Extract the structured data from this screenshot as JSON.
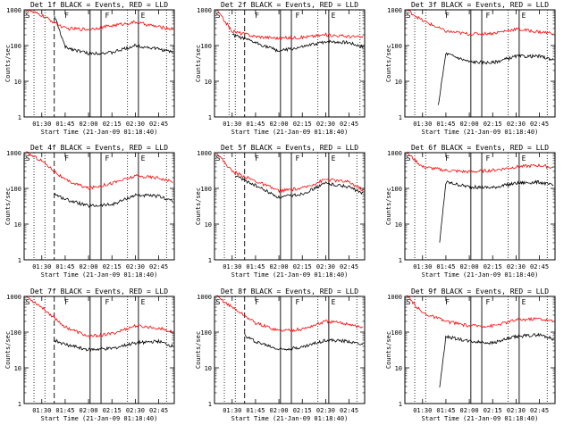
{
  "figure": {
    "time_range": [
      "01:18:40",
      "02:55:00"
    ],
    "colors": {
      "events": "#000000",
      "lld": "#ff0000",
      "axes": "#000000",
      "background": "#ffffff"
    }
  },
  "chart_data": [
    {
      "type": "line",
      "title": "Det 1f BLACK = Events, RED = LLD",
      "xlabel": "Start Time (21-Jan-09 01:18:40)",
      "ylabel": "Counts/sec",
      "x_ticks": [
        "01:30",
        "01:45",
        "02:00",
        "02:15",
        "02:30",
        "02:45"
      ],
      "y_ticks": [
        "1",
        "10",
        "100",
        "1000"
      ],
      "y_scale": "log",
      "ylim": [
        1,
        1000
      ],
      "xlim": [
        "01:18:40",
        "02:55:00"
      ],
      "markers": [
        {
          "label": "S",
          "time": "01:19"
        },
        {
          "label": "F",
          "time": "01:44"
        },
        {
          "label": "F",
          "time": "02:10"
        },
        {
          "label": "E",
          "time": "02:33"
        }
      ],
      "vertical_lines": {
        "dotted": [
          "01:25",
          "01:32",
          "02:25",
          "02:50"
        ],
        "dashed": [
          "01:38"
        ],
        "solid": [
          "02:01",
          "02:08",
          "02:32"
        ]
      },
      "series": [
        {
          "name": "Events",
          "color": "#000000",
          "x": [
            "01:38",
            "01:45",
            "02:00",
            "02:15",
            "02:30",
            "02:45",
            "02:54"
          ],
          "values": [
            700,
            90,
            60,
            63,
            100,
            80,
            65
          ]
        },
        {
          "name": "LLD",
          "color": "#ff0000",
          "x": [
            "01:20",
            "01:30",
            "01:45",
            "02:00",
            "02:15",
            "02:30",
            "02:45",
            "02:54"
          ],
          "values": [
            1000,
            700,
            300,
            285,
            360,
            450,
            330,
            290
          ]
        }
      ]
    },
    {
      "type": "line",
      "title": "Det 2f BLACK = Events, RED = LLD",
      "xlabel": "Start Time (21-Jan-09 01:18:40)",
      "ylabel": "Counts/sec",
      "x_ticks": [
        "01:30",
        "01:45",
        "02:00",
        "02:15",
        "02:30",
        "02:45"
      ],
      "y_ticks": [
        "1",
        "10",
        "100",
        "1000"
      ],
      "y_scale": "log",
      "ylim": [
        1,
        1000
      ],
      "xlim": [
        "01:18:40",
        "02:55:00"
      ],
      "markers": [
        {
          "label": "S",
          "time": "01:19"
        },
        {
          "label": "F",
          "time": "01:44"
        },
        {
          "label": "F",
          "time": "02:10"
        },
        {
          "label": "E",
          "time": "02:33"
        }
      ],
      "vertical_lines": {
        "dotted": [
          "01:28",
          "01:32",
          "02:25",
          "02:52"
        ],
        "dashed": [
          "01:38"
        ],
        "solid": [
          "02:01",
          "02:08",
          "02:32"
        ]
      },
      "series": [
        {
          "name": "Events",
          "color": "#000000",
          "x": [
            "01:30",
            "01:45",
            "02:00",
            "02:15",
            "02:30",
            "02:45",
            "02:54"
          ],
          "values": [
            200,
            120,
            70,
            90,
            130,
            120,
            90
          ]
        },
        {
          "name": "LLD",
          "color": "#ff0000",
          "x": [
            "01:20",
            "01:30",
            "01:45",
            "02:00",
            "02:15",
            "02:30",
            "02:45",
            "02:54"
          ],
          "values": [
            1000,
            250,
            180,
            160,
            170,
            200,
            180,
            170
          ]
        }
      ]
    },
    {
      "type": "line",
      "title": "Det 3f BLACK = Events, RED = LLD",
      "xlabel": "Start Time (21-Jan-09 01:18:40)",
      "ylabel": "Counts/sec",
      "x_ticks": [
        "01:30",
        "01:45",
        "02:00",
        "02:15",
        "02:30",
        "02:45"
      ],
      "y_ticks": [
        "1",
        "10",
        "100",
        "1000"
      ],
      "y_scale": "log",
      "ylim": [
        1,
        1000
      ],
      "xlim": [
        "01:18:40",
        "02:55:00"
      ],
      "markers": [
        {
          "label": "S",
          "time": "01:19"
        },
        {
          "label": "F",
          "time": "01:44"
        },
        {
          "label": "F",
          "time": "02:10"
        },
        {
          "label": "E",
          "time": "02:33"
        }
      ],
      "vertical_lines": {
        "dotted": [
          "01:25",
          "01:32",
          "02:25",
          "02:50"
        ],
        "dashed": [],
        "solid": [
          "02:01",
          "02:08",
          "02:32"
        ]
      },
      "series": [
        {
          "name": "Events",
          "color": "#000000",
          "x": [
            "01:40",
            "01:45",
            "02:00",
            "02:15",
            "02:30",
            "02:45",
            "02:54"
          ],
          "values": [
            2,
            60,
            35,
            33,
            50,
            50,
            40
          ]
        },
        {
          "name": "LLD",
          "color": "#ff0000",
          "x": [
            "01:20",
            "01:30",
            "01:45",
            "02:00",
            "02:15",
            "02:30",
            "02:45",
            "02:54"
          ],
          "values": [
            1000,
            500,
            250,
            210,
            220,
            290,
            240,
            220
          ]
        }
      ]
    },
    {
      "type": "line",
      "title": "Det 4f BLACK = Events, RED = LLD",
      "xlabel": "Start Time (21-Jan-09 01:18:40)",
      "ylabel": "Counts/sec",
      "x_ticks": [
        "01:30",
        "01:45",
        "02:00",
        "02:15",
        "02:30",
        "02:45"
      ],
      "y_ticks": [
        "1",
        "10",
        "100",
        "1000"
      ],
      "y_scale": "log",
      "ylim": [
        1,
        1000
      ],
      "xlim": [
        "01:18:40",
        "02:55:00"
      ],
      "markers": [
        {
          "label": "S",
          "time": "01:19"
        },
        {
          "label": "F",
          "time": "01:44"
        },
        {
          "label": "F",
          "time": "02:10"
        },
        {
          "label": "E",
          "time": "02:33"
        }
      ],
      "vertical_lines": {
        "dotted": [
          "01:25",
          "01:32",
          "02:25",
          "02:50"
        ],
        "dashed": [
          "01:38"
        ],
        "solid": [
          "02:01",
          "02:08",
          "02:32"
        ]
      },
      "series": [
        {
          "name": "Events",
          "color": "#000000",
          "x": [
            "01:38",
            "01:45",
            "02:00",
            "02:15",
            "02:30",
            "02:45",
            "02:54"
          ],
          "values": [
            70,
            50,
            32,
            35,
            65,
            60,
            45
          ]
        },
        {
          "name": "LLD",
          "color": "#ff0000",
          "x": [
            "01:20",
            "01:30",
            "01:45",
            "02:00",
            "02:15",
            "02:30",
            "02:45",
            "02:54"
          ],
          "values": [
            1000,
            600,
            170,
            100,
            140,
            220,
            200,
            150
          ]
        }
      ]
    },
    {
      "type": "line",
      "title": "Det 5f BLACK = Events, RED = LLD",
      "xlabel": "Start Time (21-Jan-09 01:18:40)",
      "ylabel": "Counts/sec",
      "x_ticks": [
        "01:30",
        "01:45",
        "02:00",
        "02:15",
        "02:30",
        "02:45"
      ],
      "y_ticks": [
        "1",
        "10",
        "100",
        "1000"
      ],
      "y_scale": "log",
      "ylim": [
        1,
        1000
      ],
      "xlim": [
        "01:18:40",
        "02:55:00"
      ],
      "markers": [
        {
          "label": "S",
          "time": "01:19"
        },
        {
          "label": "F",
          "time": "01:44"
        },
        {
          "label": "F",
          "time": "02:10"
        },
        {
          "label": "E",
          "time": "02:33"
        }
      ],
      "vertical_lines": {
        "dotted": [
          "01:25",
          "01:32",
          "02:25",
          "02:50"
        ],
        "dashed": [
          "01:38"
        ],
        "solid": [
          "02:01",
          "02:08",
          "02:32"
        ]
      },
      "series": [
        {
          "name": "Events",
          "color": "#000000",
          "x": [
            "01:32",
            "01:45",
            "02:00",
            "02:15",
            "02:30",
            "02:45",
            "02:54"
          ],
          "values": [
            230,
            120,
            55,
            70,
            140,
            110,
            70
          ]
        },
        {
          "name": "LLD",
          "color": "#ff0000",
          "x": [
            "01:20",
            "01:30",
            "01:45",
            "02:00",
            "02:15",
            "02:30",
            "02:45",
            "02:54"
          ],
          "values": [
            1000,
            300,
            160,
            85,
            100,
            180,
            150,
            90
          ]
        }
      ]
    },
    {
      "type": "line",
      "title": "Det 6f BLACK = Events, RED = LLD",
      "xlabel": "Start Time (21-Jan-09 01:18:40)",
      "ylabel": "Counts/sec",
      "x_ticks": [
        "01:30",
        "01:45",
        "02:00",
        "02:15",
        "02:30",
        "02:45"
      ],
      "y_ticks": [
        "1",
        "10",
        "100",
        "1000"
      ],
      "y_scale": "log",
      "ylim": [
        1,
        1000
      ],
      "xlim": [
        "01:18:40",
        "02:55:00"
      ],
      "markers": [
        {
          "label": "S",
          "time": "01:19"
        },
        {
          "label": "F",
          "time": "01:44"
        },
        {
          "label": "F",
          "time": "02:10"
        },
        {
          "label": "E",
          "time": "02:33"
        }
      ],
      "vertical_lines": {
        "dotted": [
          "01:25",
          "01:32",
          "02:25",
          "02:50"
        ],
        "dashed": [],
        "solid": [
          "02:01",
          "02:08",
          "02:32"
        ]
      },
      "series": [
        {
          "name": "Events",
          "color": "#000000",
          "x": [
            "01:41",
            "01:45",
            "02:00",
            "02:15",
            "02:30",
            "02:45",
            "02:54"
          ],
          "values": [
            3,
            150,
            110,
            105,
            140,
            150,
            120
          ]
        },
        {
          "name": "LLD",
          "color": "#ff0000",
          "x": [
            "01:20",
            "01:30",
            "01:45",
            "02:00",
            "02:15",
            "02:30",
            "02:45",
            "02:54"
          ],
          "values": [
            1000,
            400,
            320,
            290,
            320,
            400,
            440,
            380
          ]
        }
      ]
    },
    {
      "type": "line",
      "title": "Det 7f BLACK = Events, RED = LLD",
      "xlabel": "Start Time (21-Jan-09 01:18:40)",
      "ylabel": "Counts/sec",
      "x_ticks": [
        "01:30",
        "01:45",
        "02:00",
        "02:15",
        "02:30",
        "02:45"
      ],
      "y_ticks": [
        "1",
        "10",
        "100",
        "1000"
      ],
      "y_scale": "log",
      "ylim": [
        1,
        1000
      ],
      "xlim": [
        "01:18:40",
        "02:55:00"
      ],
      "markers": [
        {
          "label": "S",
          "time": "01:19"
        },
        {
          "label": "F",
          "time": "01:44"
        },
        {
          "label": "F",
          "time": "02:10"
        },
        {
          "label": "E",
          "time": "02:33"
        }
      ],
      "vertical_lines": {
        "dotted": [
          "01:25",
          "01:32",
          "02:25",
          "02:50"
        ],
        "dashed": [
          "01:38"
        ],
        "solid": [
          "02:01",
          "02:08",
          "02:32"
        ]
      },
      "series": [
        {
          "name": "Events",
          "color": "#000000",
          "x": [
            "01:38",
            "01:45",
            "02:00",
            "02:15",
            "02:30",
            "02:45",
            "02:54"
          ],
          "values": [
            60,
            45,
            32,
            35,
            50,
            55,
            40
          ]
        },
        {
          "name": "LLD",
          "color": "#ff0000",
          "x": [
            "01:20",
            "01:30",
            "01:45",
            "02:00",
            "02:15",
            "02:30",
            "02:45",
            "02:54"
          ],
          "values": [
            1000,
            500,
            140,
            75,
            90,
            150,
            130,
            100
          ]
        }
      ]
    },
    {
      "type": "line",
      "title": "Det 8f BLACK = Events, RED = LLD",
      "xlabel": "Start Time (21-Jan-09 01:18:40)",
      "ylabel": "Counts/sec",
      "x_ticks": [
        "01:30",
        "01:45",
        "02:00",
        "02:15",
        "02:30",
        "02:45"
      ],
      "y_ticks": [
        "1",
        "10",
        "100",
        "1000"
      ],
      "y_scale": "log",
      "ylim": [
        1,
        1000
      ],
      "xlim": [
        "01:18:40",
        "02:55:00"
      ],
      "markers": [
        {
          "label": "S",
          "time": "01:19"
        },
        {
          "label": "F",
          "time": "01:44"
        },
        {
          "label": "F",
          "time": "02:10"
        },
        {
          "label": "E",
          "time": "02:33"
        }
      ],
      "vertical_lines": {
        "dotted": [
          "01:25",
          "01:32",
          "02:25",
          "02:50"
        ],
        "dashed": [
          "01:38"
        ],
        "solid": [
          "02:01",
          "02:08",
          "02:32"
        ]
      },
      "series": [
        {
          "name": "Events",
          "color": "#000000",
          "x": [
            "01:38",
            "01:45",
            "02:00",
            "02:15",
            "02:30",
            "02:45",
            "02:54"
          ],
          "values": [
            80,
            55,
            33,
            38,
            60,
            55,
            45
          ]
        },
        {
          "name": "LLD",
          "color": "#ff0000",
          "x": [
            "01:20",
            "01:30",
            "01:45",
            "02:00",
            "02:15",
            "02:30",
            "02:45",
            "02:54"
          ],
          "values": [
            1000,
            500,
            180,
            110,
            120,
            200,
            170,
            130
          ]
        }
      ]
    },
    {
      "type": "line",
      "title": "Det 9f BLACK = Events, RED = LLD",
      "xlabel": "Start Time (21-Jan-09 01:18:40)",
      "ylabel": "Counts/sec",
      "x_ticks": [
        "01:30",
        "01:45",
        "02:00",
        "02:15",
        "02:30",
        "02:45"
      ],
      "y_ticks": [
        "1",
        "10",
        "100",
        "1000"
      ],
      "y_scale": "log",
      "ylim": [
        1,
        1000
      ],
      "xlim": [
        "01:18:40",
        "02:55:00"
      ],
      "markers": [
        {
          "label": "S",
          "time": "01:19"
        },
        {
          "label": "F",
          "time": "01:44"
        },
        {
          "label": "F",
          "time": "02:10"
        },
        {
          "label": "E",
          "time": "02:33"
        }
      ],
      "vertical_lines": {
        "dotted": [
          "01:25",
          "01:32",
          "02:25",
          "02:50"
        ],
        "dashed": [],
        "solid": [
          "02:01",
          "02:08",
          "02:32"
        ]
      },
      "series": [
        {
          "name": "Events",
          "color": "#000000",
          "x": [
            "01:41",
            "01:45",
            "02:00",
            "02:15",
            "02:30",
            "02:45",
            "02:54"
          ],
          "values": [
            3,
            75,
            55,
            50,
            75,
            85,
            65
          ]
        },
        {
          "name": "LLD",
          "color": "#ff0000",
          "x": [
            "01:20",
            "01:30",
            "01:45",
            "02:00",
            "02:15",
            "02:30",
            "02:45",
            "02:54"
          ],
          "values": [
            1000,
            350,
            200,
            150,
            150,
            220,
            240,
            200
          ]
        }
      ]
    }
  ]
}
